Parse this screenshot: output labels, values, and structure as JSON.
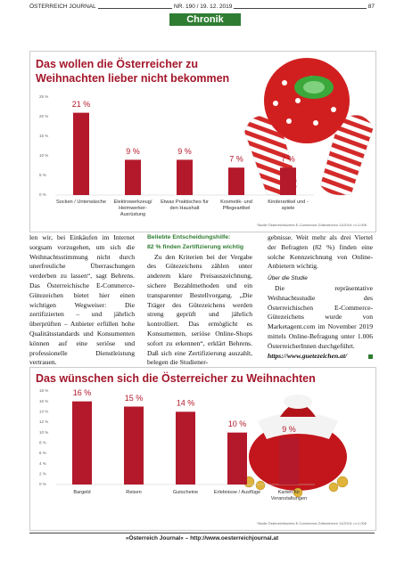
{
  "header": {
    "publication": "ÖSTERREICH JOURNAL",
    "issue": "NR. 190 / 19. 12. 2019",
    "page": "87",
    "section": "Chronik"
  },
  "chart_data": [
    {
      "type": "bar",
      "title": "Das wollen die Österreicher zu Weihnachten lieber nicht bekommen",
      "categories": [
        "Socken / Unterwäsche",
        "Elektrowerkzeug/ Heimwerker-Ausrüstung",
        "Etwas Praktisches für den Haushalt",
        "Kosmetik- und Pflegeartikel",
        "Kinderartikel und -spiele"
      ],
      "values": [
        21,
        9,
        9,
        7,
        7
      ],
      "value_labels": [
        "21 %",
        "9 %",
        "9 %",
        "7 %",
        "7 %"
      ],
      "color": "#b3192b",
      "ylim": [
        0,
        25
      ],
      "yticks": [
        {
          "value": 0,
          "label": "0 %"
        },
        {
          "value": 5,
          "label": "5 %"
        },
        {
          "value": 10,
          "label": "10 %"
        },
        {
          "value": 15,
          "label": "15 %"
        },
        {
          "value": 20,
          "label": "20 %"
        },
        {
          "value": 25,
          "label": "25 %"
        }
      ],
      "source": "Studie Österreichisches E-Commerce-Gütezeichen 11/2019, n=1.006"
    },
    {
      "type": "bar",
      "title": "Das wünschen sich die Österreicher zu Weihnachten",
      "categories": [
        "Bargeld",
        "Reisen",
        "Gutscheine",
        "Erlebnisse / Ausflüge",
        "Karten für Veranstaltungen"
      ],
      "values": [
        16,
        15,
        14,
        10,
        9
      ],
      "value_labels": [
        "16 %",
        "15 %",
        "14 %",
        "10 %",
        "9 %"
      ],
      "color": "#b3192b",
      "ylim": [
        0,
        18
      ],
      "yticks": [
        {
          "value": 0,
          "label": "0 %"
        },
        {
          "value": 2,
          "label": "2 %"
        },
        {
          "value": 4,
          "label": "4 %"
        },
        {
          "value": 6,
          "label": "6 %"
        },
        {
          "value": 8,
          "label": "8 %"
        },
        {
          "value": 10,
          "label": "10 %"
        },
        {
          "value": 12,
          "label": "12 %"
        },
        {
          "value": 14,
          "label": "14 %"
        },
        {
          "value": 16,
          "label": "16 %"
        },
        {
          "value": 18,
          "label": "18 %"
        }
      ],
      "source": "Studie Österreichisches E-Commerce-Gütezeichen 11/2019, n=1.006"
    }
  ],
  "article": {
    "column1": "len wir, bei Einkäufen im Internet sorgsam vorzugehen, um sich die Weihnachtsstimmung nicht durch unerfreuliche Überraschungen verderben zu lassen“, sagt Behrens. Das Österreichische E-Commerce-Gütezeichen bietet hier einen wichtigen Wegweiser: Die zertifizierten – und jährlich überprüften – Anbieter erfüllen hohe Qualitätsstandards und Konsumenten können auf eine seriöse und professionelle Dienstleistung vertrauen.",
    "heading": [
      "Beliebte Entscheidungshilfe:",
      "82 % finden Zertifizierung wichtig"
    ],
    "column2": "Zu den Kriterien bei der Vergabe des Gütezeichens zählen unter anderem klare Preisauszeichnung, sichere Bezahlmethoden und ein transparenter Bestellvorgang. „Die Träger des Gütezeichens werden streng geprüft und jährlich kontrolliert. Das ermöglicht es Konsumenten, seriöse Online-Shops sofort zu erkennen“, erklärt Behrens. Daß sich eine Zertifizierung auszahlt, belegen die Studiener-",
    "column3": "gebnisse. Weit mehr als drei Viertel der Befragten (82 %) finden eine solche Kennzeichnung von Online-Anbietern wichtig.",
    "subheading": "Über die Studie",
    "column3b": "Die repräsentative Weihnachtsstudie des Österreichischen E-Commerce-Gütezeichens wurde von Marketagent.com im November 2019 mittels Online-Befragung unter 1.006 ÖsterreicherInnen durchgeführt.",
    "link": "https://www.guetezeichen.at/"
  },
  "footer": "»Österreich Journal« – http://www.oesterreichjournal.at"
}
